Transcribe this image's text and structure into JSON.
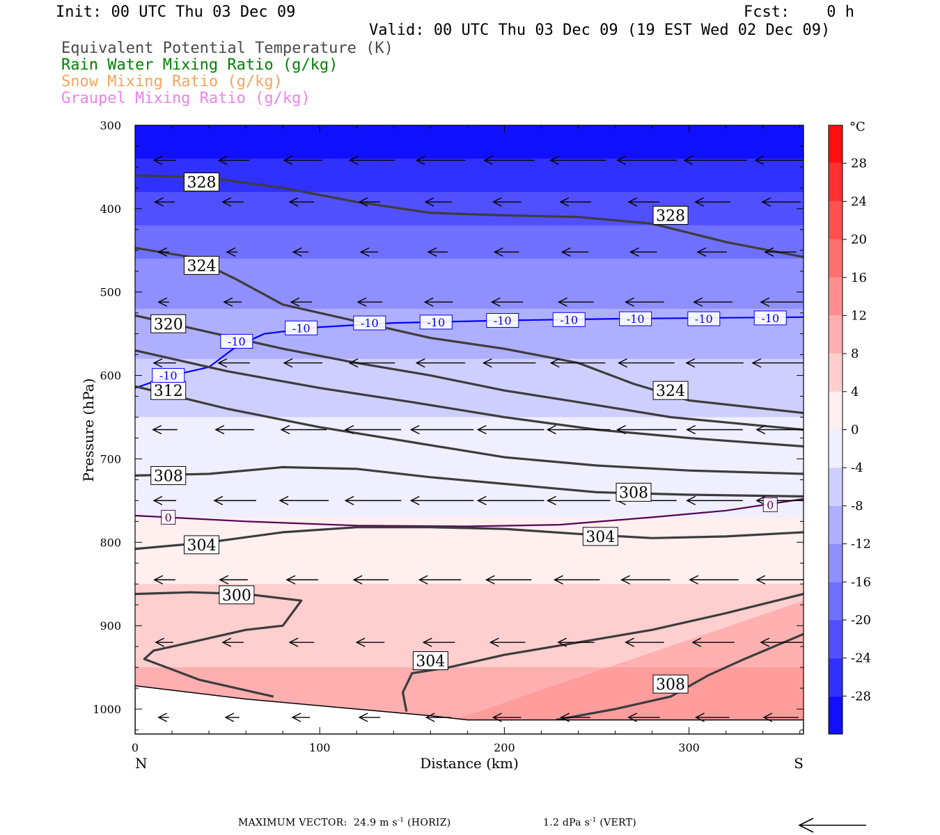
{
  "header": {
    "init": "Init: 00 UTC Thu 03 Dec 09",
    "fcst": "Fcst:    0 h",
    "valid": "Valid: 00 UTC Thu 03 Dec 09 (19 EST Wed 02 Dec 09)",
    "legend": [
      {
        "text": "Equivalent Potential Temperature (K)",
        "color": "#4a4a4a"
      },
      {
        "text": "Rain Water Mixing Ratio (g/kg)",
        "color": "#008000"
      },
      {
        "text": "Snow Mixing Ratio (g/kg)",
        "color": "#f4a460"
      },
      {
        "text": "Graupel Mixing Ratio (g/kg)",
        "color": "#ee82ee"
      }
    ]
  },
  "footer": {
    "max_vector": "MAXIMUM VECTOR:  24.9 m s",
    "max_vector_exp": "-1",
    "max_vector_tail": " (HORIZ)",
    "vert": "1.2 dPa s",
    "vert_exp": "-1",
    "vert_tail": " (VERT)"
  },
  "chart_data": {
    "type": "contour",
    "xlabel": "Distance (km)",
    "ylabel": "Pressure (hPa)",
    "xlim": [
      0,
      362
    ],
    "ylim": [
      1030,
      300
    ],
    "xticks": [
      0,
      100,
      200,
      300
    ],
    "yticks": [
      300,
      400,
      500,
      600,
      700,
      800,
      900,
      1000
    ],
    "left_end_label": "N",
    "right_end_label": "S",
    "colorbar": {
      "unit": "°C",
      "ticks": [
        28,
        24,
        20,
        16,
        12,
        8,
        4,
        0,
        -4,
        -8,
        -12,
        -16,
        -20,
        -24,
        -28
      ],
      "range": [
        -32,
        32
      ]
    },
    "temperature_field": {
      "description_levels": [
        {
          "p": 300,
          "T": -31
        },
        {
          "p": 350,
          "T": -27
        },
        {
          "p": 400,
          "T": -22
        },
        {
          "p": 450,
          "T": -17
        },
        {
          "p": 500,
          "T": -13
        },
        {
          "p": 550,
          "T": -10
        },
        {
          "p": 600,
          "T": -7
        },
        {
          "p": 650,
          "T": -4
        },
        {
          "p": 700,
          "T": -2
        },
        {
          "p": 770,
          "T": 0
        },
        {
          "p": 830,
          "T": 3
        },
        {
          "p": 900,
          "T": 6
        },
        {
          "p": 1000,
          "T": 10
        }
      ]
    },
    "theta_e_contours": [
      {
        "label": "328",
        "label_points": [
          [
            36,
            368
          ],
          [
            290,
            408
          ]
        ],
        "points": [
          [
            0,
            360
          ],
          [
            40,
            363
          ],
          [
            80,
            375
          ],
          [
            120,
            392
          ],
          [
            160,
            405
          ],
          [
            200,
            408
          ],
          [
            240,
            410
          ],
          [
            280,
            418
          ],
          [
            320,
            440
          ],
          [
            362,
            458
          ]
        ]
      },
      {
        "label": "324",
        "label_points": [
          [
            36,
            468
          ],
          [
            290,
            618
          ]
        ],
        "points": [
          [
            0,
            447
          ],
          [
            30,
            458
          ],
          [
            55,
            485
          ],
          [
            80,
            515
          ],
          [
            120,
            535
          ],
          [
            160,
            555
          ],
          [
            200,
            568
          ],
          [
            240,
            585
          ],
          [
            270,
            610
          ],
          [
            300,
            630
          ],
          [
            362,
            645
          ]
        ]
      },
      {
        "label": "320",
        "label_points": [
          [
            18,
            538
          ]
        ],
        "points": [
          [
            0,
            528
          ],
          [
            40,
            548
          ],
          [
            80,
            568
          ],
          [
            120,
            585
          ],
          [
            160,
            600
          ],
          [
            200,
            618
          ],
          [
            240,
            632
          ],
          [
            290,
            650
          ],
          [
            362,
            665
          ]
        ]
      },
      {
        "label": "",
        "label_points": [],
        "points": [
          [
            0,
            570
          ],
          [
            50,
            595
          ],
          [
            100,
            615
          ],
          [
            150,
            632
          ],
          [
            200,
            650
          ],
          [
            250,
            665
          ],
          [
            300,
            675
          ],
          [
            362,
            685
          ]
        ]
      },
      {
        "label": "312",
        "label_points": [
          [
            18,
            618
          ]
        ],
        "points": [
          [
            0,
            613
          ],
          [
            50,
            640
          ],
          [
            100,
            662
          ],
          [
            150,
            680
          ],
          [
            200,
            698
          ],
          [
            250,
            708
          ],
          [
            300,
            714
          ],
          [
            362,
            718
          ]
        ]
      },
      {
        "label": "308",
        "label_points": [
          [
            18,
            720
          ],
          [
            270,
            740
          ]
        ],
        "points": [
          [
            0,
            720
          ],
          [
            40,
            718
          ],
          [
            80,
            710
          ],
          [
            120,
            712
          ],
          [
            160,
            722
          ],
          [
            200,
            730
          ],
          [
            250,
            740
          ],
          [
            300,
            743
          ],
          [
            362,
            745
          ]
        ]
      },
      {
        "label": "304",
        "label_points": [
          [
            36,
            803
          ],
          [
            252,
            793
          ]
        ],
        "points": [
          [
            0,
            808
          ],
          [
            40,
            800
          ],
          [
            80,
            788
          ],
          [
            120,
            782
          ],
          [
            160,
            782
          ],
          [
            200,
            784
          ],
          [
            240,
            790
          ],
          [
            280,
            795
          ],
          [
            320,
            793
          ],
          [
            362,
            788
          ]
        ]
      },
      {
        "label": "300",
        "label_points": [
          [
            55,
            863
          ]
        ],
        "points": [
          [
            0,
            862
          ],
          [
            30,
            860
          ],
          [
            60,
            862
          ],
          [
            90,
            870
          ],
          [
            80,
            900
          ],
          [
            60,
            905
          ],
          [
            30,
            920
          ],
          [
            10,
            930
          ],
          [
            5,
            940
          ],
          [
            35,
            965
          ],
          [
            75,
            985
          ]
        ]
      },
      {
        "label": "304",
        "label_points": [
          [
            160,
            942
          ]
        ],
        "points": [
          [
            147,
            1003
          ],
          [
            145,
            980
          ],
          [
            150,
            957
          ],
          [
            170,
            950
          ],
          [
            200,
            935
          ],
          [
            240,
            920
          ],
          [
            280,
            905
          ],
          [
            320,
            885
          ],
          [
            362,
            862
          ]
        ]
      },
      {
        "label": "308",
        "label_points": [
          [
            290,
            970
          ]
        ],
        "points": [
          [
            228,
            1013
          ],
          [
            260,
            1000
          ],
          [
            290,
            985
          ],
          [
            310,
            960
          ],
          [
            330,
            940
          ],
          [
            362,
            910
          ]
        ]
      }
    ],
    "isotherms": [
      {
        "value": "-10",
        "color": "#0000ff",
        "labels": [
          [
            18,
            600
          ],
          [
            55,
            559
          ],
          [
            90,
            543
          ],
          [
            127,
            537
          ],
          [
            163,
            536
          ],
          [
            199,
            534
          ],
          [
            235,
            533
          ],
          [
            271,
            532
          ],
          [
            308,
            532
          ],
          [
            344,
            531
          ]
        ],
        "points": [
          [
            0,
            615
          ],
          [
            20,
            600
          ],
          [
            40,
            590
          ],
          [
            55,
            565
          ],
          [
            70,
            550
          ],
          [
            100,
            542
          ],
          [
            140,
            537
          ],
          [
            200,
            534
          ],
          [
            260,
            532
          ],
          [
            362,
            530
          ]
        ]
      },
      {
        "value": "0",
        "color": "#550055",
        "labels": [
          [
            18,
            770
          ],
          [
            344,
            755
          ]
        ],
        "points": [
          [
            0,
            768
          ],
          [
            60,
            775
          ],
          [
            120,
            780
          ],
          [
            180,
            781
          ],
          [
            230,
            779
          ],
          [
            280,
            770
          ],
          [
            320,
            762
          ],
          [
            362,
            748
          ]
        ]
      }
    ],
    "surface": {
      "points": [
        [
          0,
          972
        ],
        [
          60,
          988
        ],
        [
          120,
          1000
        ],
        [
          160,
          1008
        ],
        [
          180,
          1013
        ],
        [
          362,
          1013
        ]
      ]
    },
    "wind_rows": [
      {
        "p": 342,
        "len": [
          32,
          44,
          55,
          65,
          70,
          72,
          80,
          85,
          90,
          80
        ]
      },
      {
        "p": 392,
        "len": [
          28,
          30,
          35,
          30,
          38,
          40,
          44,
          44,
          50,
          55
        ]
      },
      {
        "p": 452,
        "len": [
          15,
          15,
          22,
          25,
          28,
          35,
          38,
          38,
          42,
          45
        ]
      },
      {
        "p": 512,
        "len": [
          15,
          25,
          30,
          35,
          40,
          45,
          50,
          55,
          55,
          60
        ]
      },
      {
        "p": 585,
        "len": [
          32,
          45,
          55,
          65,
          70,
          75,
          78,
          80,
          82,
          90
        ]
      },
      {
        "p": 665,
        "len": [
          35,
          55,
          65,
          80,
          90,
          95,
          90,
          85,
          80,
          75
        ]
      },
      {
        "p": 750,
        "len": [
          32,
          60,
          70,
          80,
          90,
          95,
          90,
          85,
          80,
          75
        ]
      },
      {
        "p": 845,
        "len": [
          30,
          40,
          45,
          50,
          60,
          65,
          65,
          70,
          70,
          75
        ]
      },
      {
        "p": 920,
        "len": [
          25,
          30,
          35,
          40,
          45,
          50,
          52,
          55,
          60,
          60
        ]
      },
      {
        "p": 1010,
        "len": [
          15,
          20,
          25,
          30,
          35,
          40,
          42,
          45,
          48,
          50
        ]
      }
    ]
  }
}
